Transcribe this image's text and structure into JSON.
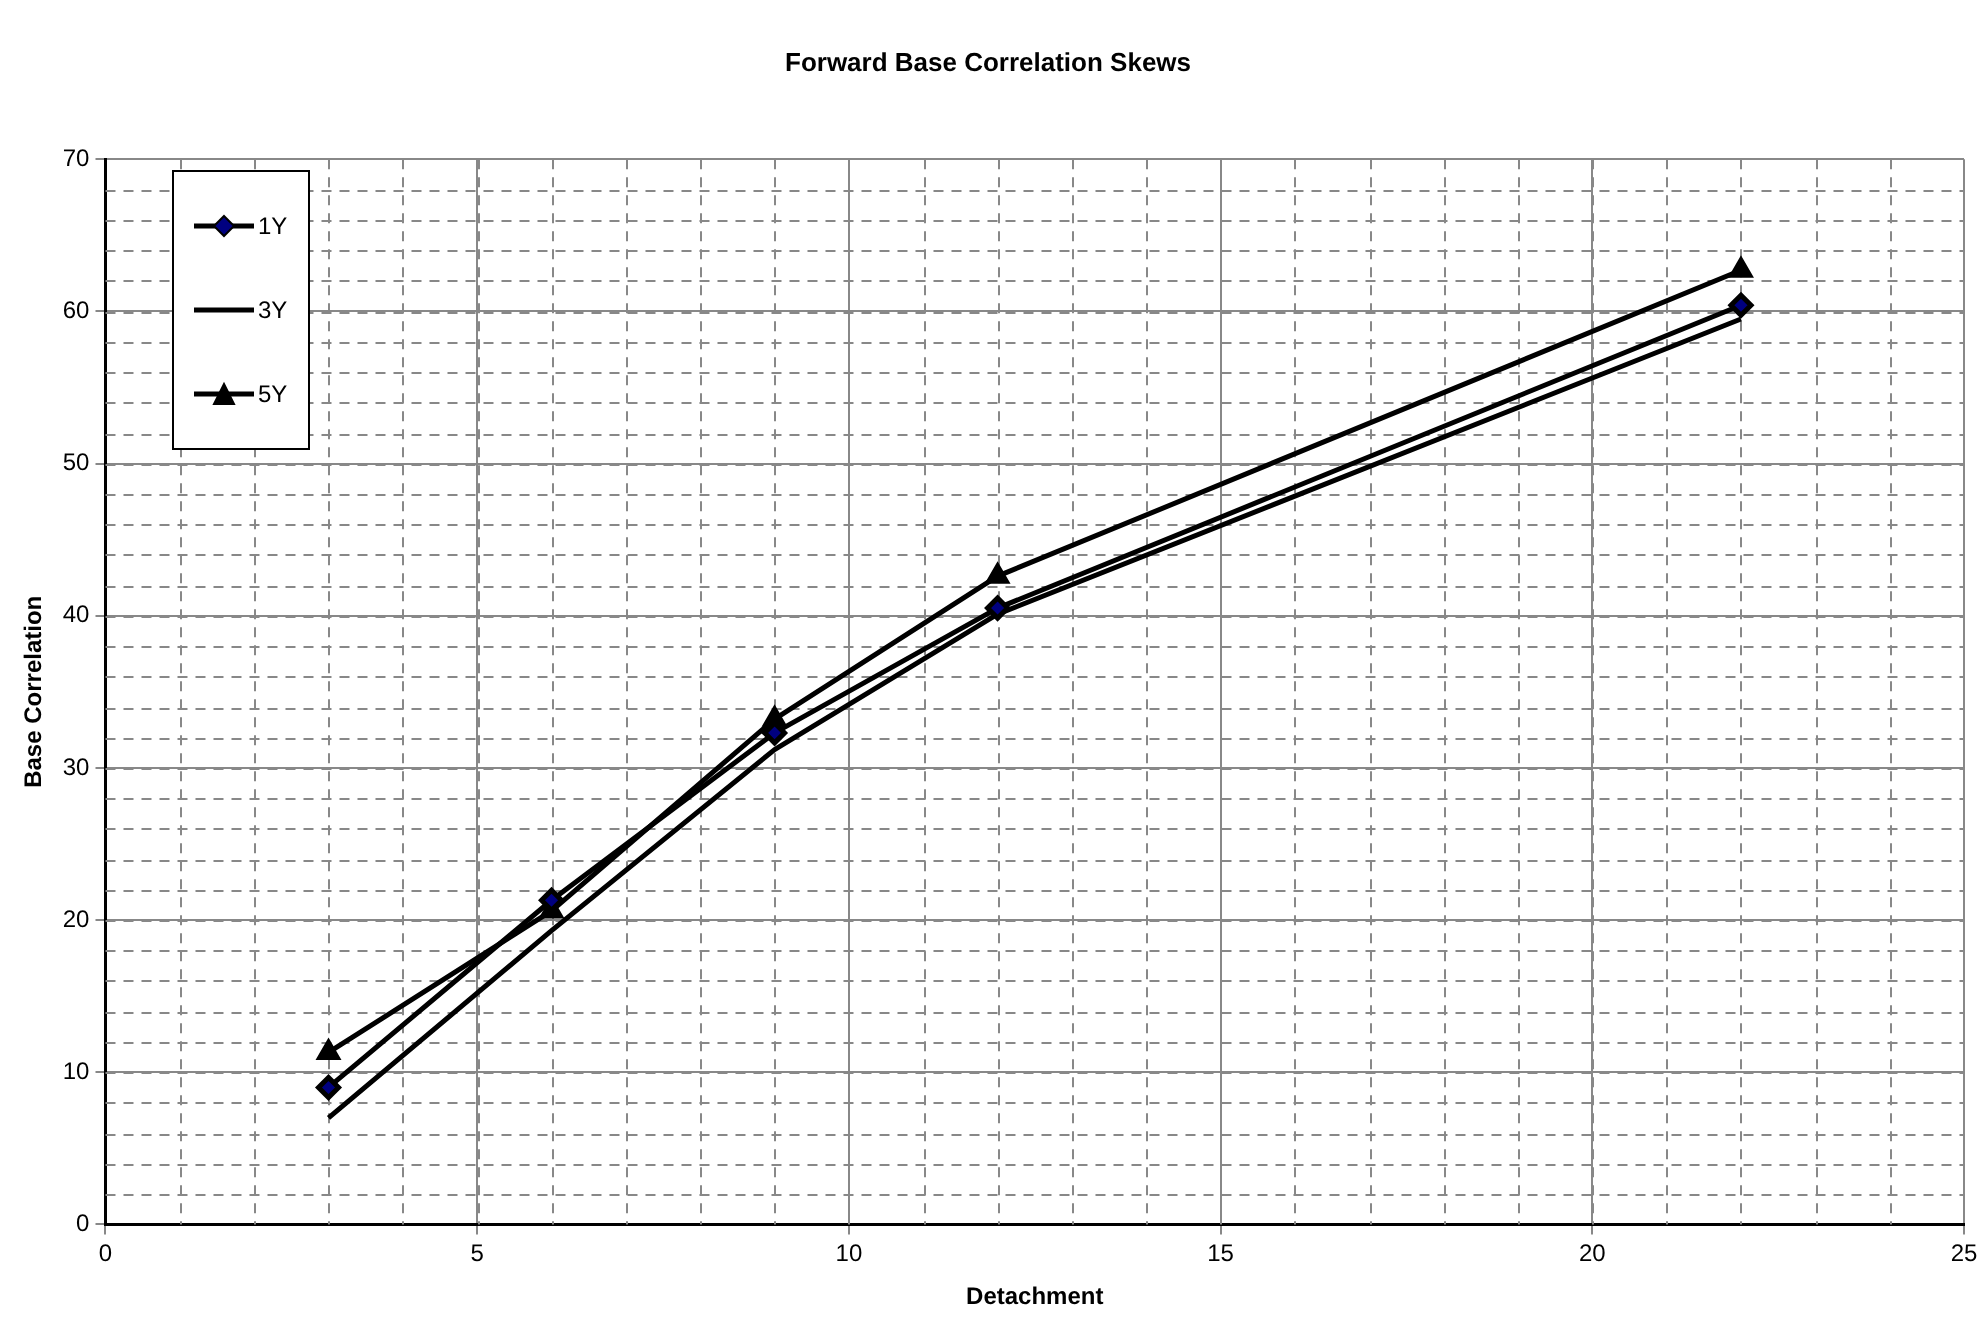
{
  "chart_data": {
    "type": "line",
    "title": "Forward Base Correlation Skews",
    "xlabel": "Detachment",
    "ylabel": "Base Correlation",
    "x": [
      3,
      6,
      9,
      12,
      22
    ],
    "series": [
      {
        "name": "1Y",
        "color": "#000000",
        "marker": "diamond",
        "values": [
          9.0,
          21.3,
          32.3,
          40.5,
          60.4
        ]
      },
      {
        "name": "3Y",
        "color": "#000000",
        "marker": "none",
        "values": [
          7.0,
          19.3,
          31.2,
          40.1,
          59.5
        ]
      },
      {
        "name": "5Y",
        "color": "#000000",
        "marker": "triangle",
        "values": [
          11.3,
          20.6,
          33.2,
          42.6,
          62.7
        ]
      }
    ],
    "xlim": [
      0,
      25
    ],
    "xticks": [
      0,
      5,
      10,
      15,
      20,
      25
    ],
    "ylim": [
      0,
      70
    ],
    "yticks": [
      0,
      10,
      20,
      30,
      40,
      50,
      60,
      70
    ],
    "grid": true,
    "legend": "top left",
    "line_style": "solid"
  }
}
